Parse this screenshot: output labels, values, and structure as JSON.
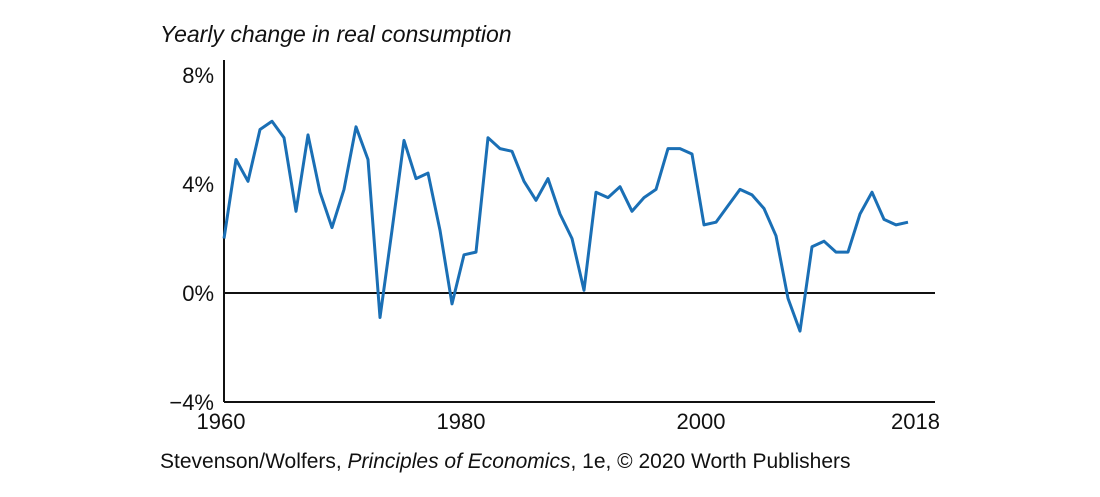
{
  "chart_data": {
    "type": "line",
    "title": "Yearly change in real consumption",
    "x": [
      1960,
      1961,
      1962,
      1963,
      1964,
      1965,
      1966,
      1967,
      1968,
      1969,
      1970,
      1971,
      1972,
      1973,
      1974,
      1975,
      1976,
      1977,
      1978,
      1979,
      1980,
      1981,
      1982,
      1983,
      1984,
      1985,
      1986,
      1987,
      1988,
      1989,
      1990,
      1991,
      1992,
      1993,
      1994,
      1995,
      1996,
      1997,
      1998,
      1999,
      2000,
      2001,
      2002,
      2003,
      2004,
      2005,
      2006,
      2007,
      2008,
      2009,
      2010,
      2011,
      2012,
      2013,
      2014,
      2015,
      2016,
      2017
    ],
    "series": [
      {
        "name": "Yearly change in real consumption",
        "color": "#1a6fb5",
        "values": [
          2.0,
          4.9,
          4.1,
          6.0,
          6.3,
          5.7,
          3.0,
          5.8,
          3.7,
          2.4,
          3.8,
          6.1,
          4.9,
          -0.9,
          2.3,
          5.6,
          4.2,
          4.4,
          2.3,
          -0.4,
          1.4,
          1.5,
          5.7,
          5.3,
          5.2,
          4.1,
          3.4,
          4.2,
          2.9,
          2.0,
          0.1,
          3.7,
          3.5,
          3.9,
          3.0,
          3.5,
          3.8,
          5.3,
          5.3,
          5.1,
          2.5,
          2.6,
          3.2,
          3.8,
          3.6,
          3.1,
          2.1,
          -0.2,
          -1.4,
          1.7,
          1.9,
          1.5,
          1.5,
          2.9,
          3.7,
          2.7,
          2.5,
          2.6
        ]
      }
    ],
    "xlim": [
      1960,
      2019
    ],
    "xticks": [
      1960,
      1980,
      2000,
      2018
    ],
    "ylim": [
      -4,
      8
    ],
    "yticks": [
      {
        "value": -4,
        "label": "−4%"
      },
      {
        "value": 0,
        "label": "0%"
      },
      {
        "value": 4,
        "label": "4%"
      },
      {
        "value": 8,
        "label": "8%"
      }
    ],
    "source": [
      "Stevenson/Wolfers,",
      "Principles of Economics",
      ", 1e, © 2020 Worth Publishers"
    ]
  }
}
